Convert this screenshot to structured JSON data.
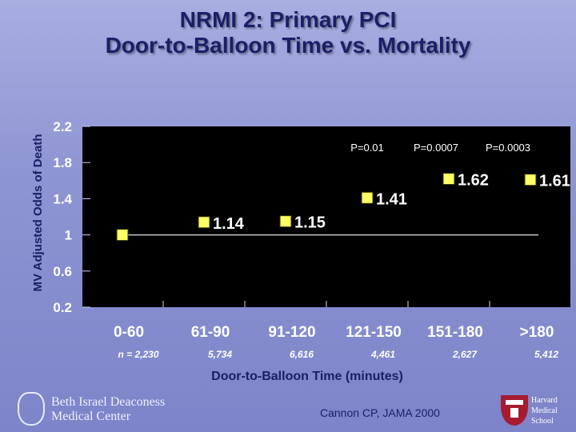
{
  "slide": {
    "title_line1": "NRMI 2:  Primary PCI",
    "title_line2": "Door-to-Balloon Time vs. Mortality",
    "citation": "Cannon CP, JAMA 2000",
    "logo_left": {
      "line1": "Beth Israel Deaconess",
      "line2": "Medical Center"
    },
    "logo_right": {
      "line1": "Harvard",
      "line2": "Medical",
      "line3": "School"
    },
    "colors": {
      "plot_bg": "#000000",
      "marker": "#ffff66",
      "title": "#1a1f66",
      "harvard_red": "#a51c30"
    }
  },
  "chart_data": {
    "type": "scatter",
    "xlabel": "Door-to-Balloon Time (minutes)",
    "ylabel": "MV Adjusted Odds of Death",
    "ylim": [
      0.2,
      2.2
    ],
    "yticks": [
      "2.2",
      "1.8",
      "1.4",
      "1",
      "0.6",
      "0.2"
    ],
    "ytick_values": [
      2.2,
      1.8,
      1.4,
      1.0,
      0.6,
      0.2
    ],
    "categories": [
      "0-60",
      "61-90",
      "91-120",
      "121-150",
      "151-180",
      ">180"
    ],
    "n_labels": [
      "n = 2,230",
      "5,734",
      "6,616",
      "4,461",
      "2,627",
      "5,412"
    ],
    "values": [
      1.0,
      1.14,
      1.15,
      1.41,
      1.62,
      1.61
    ],
    "data_labels": [
      "",
      "1.14",
      "1.15",
      "1.41",
      "1.62",
      "1.61"
    ],
    "reference_line": 1.0,
    "p_values": [
      "P=0.01",
      "P=0.0007",
      "P=0.0003"
    ],
    "grid": false
  }
}
